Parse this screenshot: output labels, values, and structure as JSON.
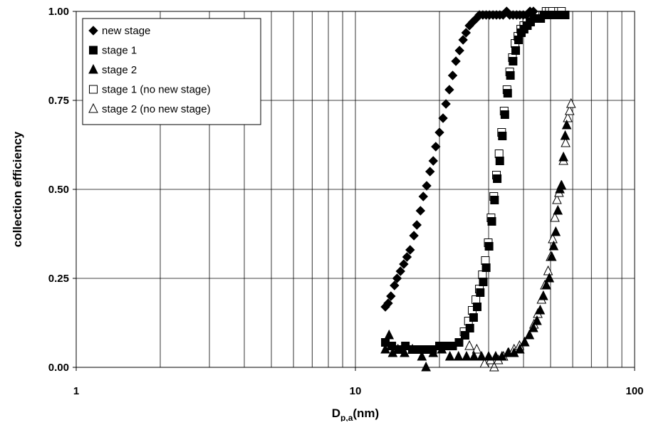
{
  "chart_data": {
    "type": "scatter",
    "title": "",
    "xlabel_main": "D",
    "xlabel_sub": "p,a",
    "xlabel_unit": "(nm)",
    "ylabel": "collection efficiency",
    "x_scale": "log",
    "xlim": [
      1,
      100
    ],
    "ylim": [
      0,
      1.0
    ],
    "grid": true,
    "legend_position": "top-left",
    "x_ticks": [
      "1",
      "10",
      "100"
    ],
    "y_ticks": [
      "0.00",
      "0.25",
      "0.50",
      "0.75",
      "1.00"
    ],
    "series": [
      {
        "name": "new stage",
        "marker": "diamond-filled",
        "points": [
          [
            12.8,
            0.17
          ],
          [
            13.1,
            0.18
          ],
          [
            13.4,
            0.2
          ],
          [
            13.8,
            0.23
          ],
          [
            14.1,
            0.25
          ],
          [
            14.5,
            0.27
          ],
          [
            14.9,
            0.29
          ],
          [
            15.3,
            0.31
          ],
          [
            15.7,
            0.33
          ],
          [
            16.2,
            0.37
          ],
          [
            16.6,
            0.4
          ],
          [
            17.1,
            0.44
          ],
          [
            17.5,
            0.48
          ],
          [
            18.0,
            0.51
          ],
          [
            18.5,
            0.55
          ],
          [
            19.0,
            0.58
          ],
          [
            19.4,
            0.62
          ],
          [
            20.0,
            0.66
          ],
          [
            20.6,
            0.7
          ],
          [
            21.1,
            0.74
          ],
          [
            21.7,
            0.78
          ],
          [
            22.3,
            0.82
          ],
          [
            22.9,
            0.86
          ],
          [
            23.6,
            0.89
          ],
          [
            24.3,
            0.92
          ],
          [
            24.9,
            0.94
          ],
          [
            25.6,
            0.96
          ],
          [
            26.3,
            0.97
          ],
          [
            27.1,
            0.98
          ],
          [
            27.8,
            0.99
          ],
          [
            28.6,
            0.99
          ],
          [
            29.4,
            0.99
          ],
          [
            30.2,
            0.99
          ],
          [
            31.1,
            0.99
          ],
          [
            32.0,
            0.99
          ],
          [
            32.9,
            0.99
          ],
          [
            33.8,
            0.99
          ],
          [
            34.8,
            1.0
          ],
          [
            35.7,
            0.99
          ],
          [
            36.7,
            0.99
          ],
          [
            37.8,
            0.99
          ],
          [
            38.8,
            0.99
          ],
          [
            39.9,
            0.99
          ],
          [
            41.0,
            0.99
          ],
          [
            42.2,
            1.0
          ],
          [
            43.4,
            1.0
          ]
        ]
      },
      {
        "name": "stage 1",
        "marker": "square-filled",
        "points": [
          [
            12.8,
            0.07
          ],
          [
            13.5,
            0.06
          ],
          [
            14.3,
            0.05
          ],
          [
            15.1,
            0.06
          ],
          [
            16.0,
            0.05
          ],
          [
            16.9,
            0.05
          ],
          [
            17.9,
            0.05
          ],
          [
            18.9,
            0.05
          ],
          [
            20.0,
            0.06
          ],
          [
            21.1,
            0.06
          ],
          [
            22.3,
            0.06
          ],
          [
            23.5,
            0.07
          ],
          [
            24.7,
            0.09
          ],
          [
            25.7,
            0.11
          ],
          [
            26.5,
            0.14
          ],
          [
            27.3,
            0.17
          ],
          [
            28.0,
            0.21
          ],
          [
            28.7,
            0.24
          ],
          [
            29.4,
            0.28
          ],
          [
            30.1,
            0.34
          ],
          [
            30.8,
            0.41
          ],
          [
            31.5,
            0.47
          ],
          [
            32.2,
            0.53
          ],
          [
            32.9,
            0.58
          ],
          [
            33.6,
            0.65
          ],
          [
            34.3,
            0.71
          ],
          [
            35.1,
            0.77
          ],
          [
            35.9,
            0.82
          ],
          [
            36.7,
            0.86
          ],
          [
            37.5,
            0.89
          ],
          [
            38.4,
            0.92
          ],
          [
            39.3,
            0.94
          ],
          [
            40.2,
            0.95
          ],
          [
            41.3,
            0.96
          ],
          [
            42.4,
            0.97
          ],
          [
            43.6,
            0.98
          ],
          [
            44.8,
            0.98
          ],
          [
            46.1,
            0.98
          ],
          [
            47.4,
            0.99
          ],
          [
            48.8,
            0.99
          ],
          [
            50.2,
            0.99
          ],
          [
            51.7,
            0.99
          ],
          [
            53.2,
            0.99
          ],
          [
            54.8,
            0.99
          ],
          [
            56.4,
            0.99
          ]
        ]
      },
      {
        "name": "stage 2",
        "marker": "triangle-filled",
        "points": [
          [
            12.8,
            0.05
          ],
          [
            13.2,
            0.09
          ],
          [
            13.6,
            0.04
          ],
          [
            14.2,
            0.05
          ],
          [
            15.0,
            0.04
          ],
          [
            16.0,
            0.05
          ],
          [
            17.3,
            0.03
          ],
          [
            17.9,
            0.0
          ],
          [
            19.0,
            0.04
          ],
          [
            20.4,
            0.05
          ],
          [
            21.8,
            0.03
          ],
          [
            23.4,
            0.03
          ],
          [
            25.0,
            0.03
          ],
          [
            26.6,
            0.03
          ],
          [
            28.3,
            0.03
          ],
          [
            30.0,
            0.03
          ],
          [
            31.8,
            0.03
          ],
          [
            33.5,
            0.03
          ],
          [
            35.2,
            0.04
          ],
          [
            37.0,
            0.04
          ],
          [
            38.8,
            0.05
          ],
          [
            40.4,
            0.07
          ],
          [
            42.0,
            0.09
          ],
          [
            43.4,
            0.11
          ],
          [
            44.7,
            0.13
          ],
          [
            45.9,
            0.16
          ],
          [
            47.1,
            0.2
          ],
          [
            48.3,
            0.23
          ],
          [
            49.5,
            0.25
          ],
          [
            50.5,
            0.31
          ],
          [
            51.3,
            0.34
          ],
          [
            52.2,
            0.38
          ],
          [
            53.1,
            0.44
          ],
          [
            54.0,
            0.5
          ],
          [
            54.8,
            0.51
          ],
          [
            55.6,
            0.59
          ],
          [
            56.4,
            0.65
          ],
          [
            57.1,
            0.68
          ]
        ]
      },
      {
        "name": "stage 1 (no new stage)",
        "marker": "square-open",
        "points": [
          [
            24.5,
            0.1
          ],
          [
            25.4,
            0.13
          ],
          [
            26.2,
            0.16
          ],
          [
            27.0,
            0.19
          ],
          [
            27.8,
            0.22
          ],
          [
            28.5,
            0.26
          ],
          [
            29.2,
            0.3
          ],
          [
            29.9,
            0.35
          ],
          [
            30.6,
            0.42
          ],
          [
            31.3,
            0.48
          ],
          [
            32.0,
            0.54
          ],
          [
            32.7,
            0.6
          ],
          [
            33.4,
            0.66
          ],
          [
            34.1,
            0.72
          ],
          [
            34.9,
            0.78
          ],
          [
            35.7,
            0.83
          ],
          [
            36.5,
            0.87
          ],
          [
            37.3,
            0.91
          ],
          [
            38.2,
            0.93
          ],
          [
            39.1,
            0.95
          ],
          [
            40.1,
            0.96
          ],
          [
            41.1,
            0.97
          ],
          [
            42.2,
            0.98
          ],
          [
            43.3,
            0.98
          ],
          [
            44.5,
            0.99
          ],
          [
            45.7,
            0.99
          ],
          [
            46.9,
            0.99
          ],
          [
            48.2,
            1.0
          ],
          [
            49.5,
            1.0
          ],
          [
            50.8,
            1.0
          ],
          [
            52.1,
            0.99
          ],
          [
            53.4,
            1.0
          ],
          [
            54.7,
            1.0
          ],
          [
            56.0,
            0.99
          ]
        ]
      },
      {
        "name": "stage 2 (no new stage)",
        "marker": "triangle-open",
        "points": [
          [
            25.6,
            0.06
          ],
          [
            27.2,
            0.05
          ],
          [
            29.0,
            0.01
          ],
          [
            30.5,
            0.02
          ],
          [
            31.4,
            0.0
          ],
          [
            32.5,
            0.02
          ],
          [
            33.9,
            0.03
          ],
          [
            35.4,
            0.04
          ],
          [
            37.0,
            0.05
          ],
          [
            38.7,
            0.06
          ],
          [
            40.4,
            0.07
          ],
          [
            42.0,
            0.09
          ],
          [
            43.6,
            0.12
          ],
          [
            45.0,
            0.15
          ],
          [
            46.4,
            0.19
          ],
          [
            47.7,
            0.23
          ],
          [
            49.0,
            0.27
          ],
          [
            50.0,
            0.31
          ],
          [
            50.9,
            0.36
          ],
          [
            51.8,
            0.42
          ],
          [
            52.7,
            0.47
          ],
          [
            53.6,
            0.49
          ],
          [
            54.6,
            0.51
          ],
          [
            55.6,
            0.58
          ],
          [
            56.6,
            0.63
          ],
          [
            57.6,
            0.7
          ],
          [
            58.5,
            0.72
          ],
          [
            59.2,
            0.74
          ]
        ]
      }
    ]
  }
}
